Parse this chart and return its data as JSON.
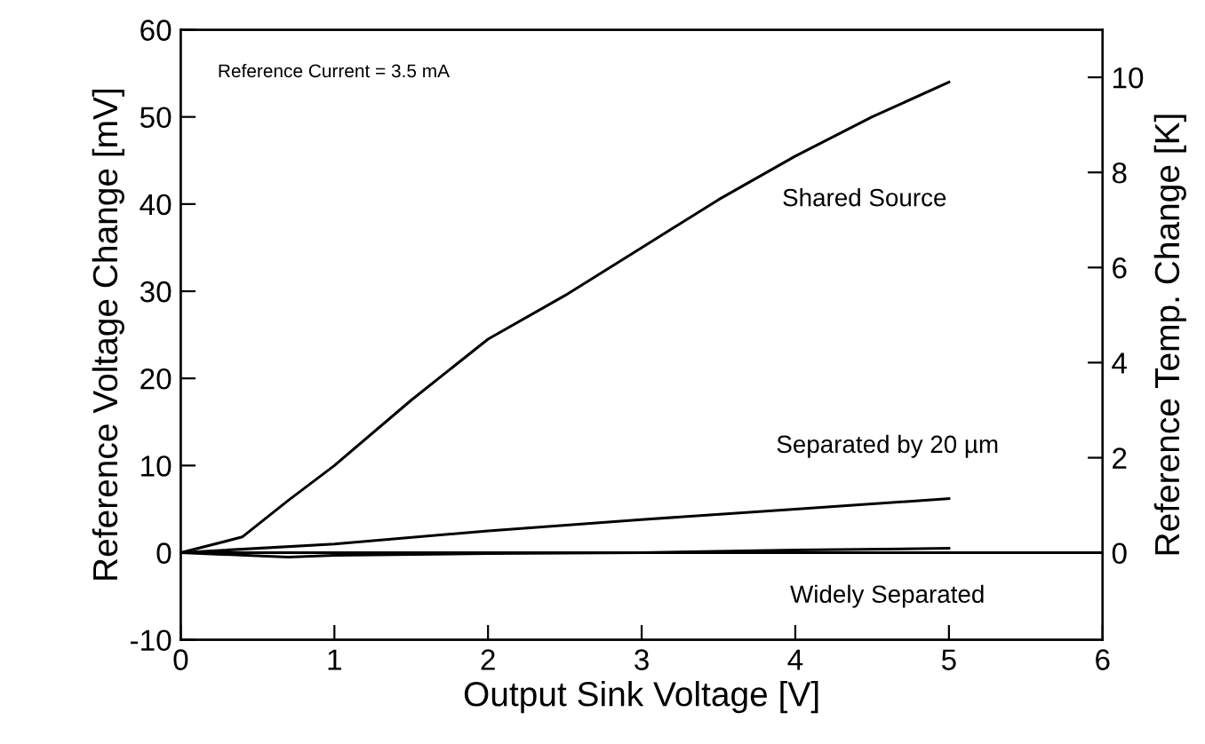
{
  "chart_data": {
    "type": "line",
    "xlabel": "Output Sink Voltage [V]",
    "ylabel": "Reference Voltage Change [mV]",
    "y2label": "Reference Temp. Change [K]",
    "annotations": [
      "Reference Current = 3.5 mA"
    ],
    "series": [
      {
        "name": "Shared Source",
        "color": "#000000",
        "x": [
          0,
          0.4,
          0.7,
          1,
          1.5,
          2,
          2.5,
          3,
          3.5,
          4,
          4.5,
          5
        ],
        "values": [
          0,
          1.8,
          6,
          10,
          17.5,
          24.5,
          29.5,
          35,
          40.5,
          45.5,
          50,
          54
        ]
      },
      {
        "name": "Separated by 20 µm",
        "color": "#000000",
        "x": [
          0,
          1,
          2,
          3,
          4,
          5
        ],
        "values": [
          0,
          1,
          2.5,
          3.8,
          5,
          6.2
        ]
      },
      {
        "name": "Widely Separated",
        "color": "#000000",
        "x": [
          0,
          0.7,
          1,
          2,
          3,
          4,
          5
        ],
        "values": [
          0,
          -0.5,
          -0.3,
          -0.1,
          0,
          0.3,
          0.5
        ]
      }
    ],
    "xlim": [
      0,
      6
    ],
    "xticks": [
      0,
      1,
      2,
      3,
      4,
      5,
      6
    ],
    "ylim": [
      -10,
      60
    ],
    "yticks": [
      -10,
      0,
      10,
      20,
      30,
      40,
      50,
      60
    ],
    "y2lim": [
      -1.83,
      11
    ],
    "y2ticks": [
      0,
      2,
      4,
      6,
      8,
      10
    ],
    "ref_lines": [
      {
        "axis": "y",
        "value": 0,
        "color": "#000000"
      }
    ],
    "grid": false,
    "legend": false,
    "marker": "none",
    "line_style": "solid"
  }
}
